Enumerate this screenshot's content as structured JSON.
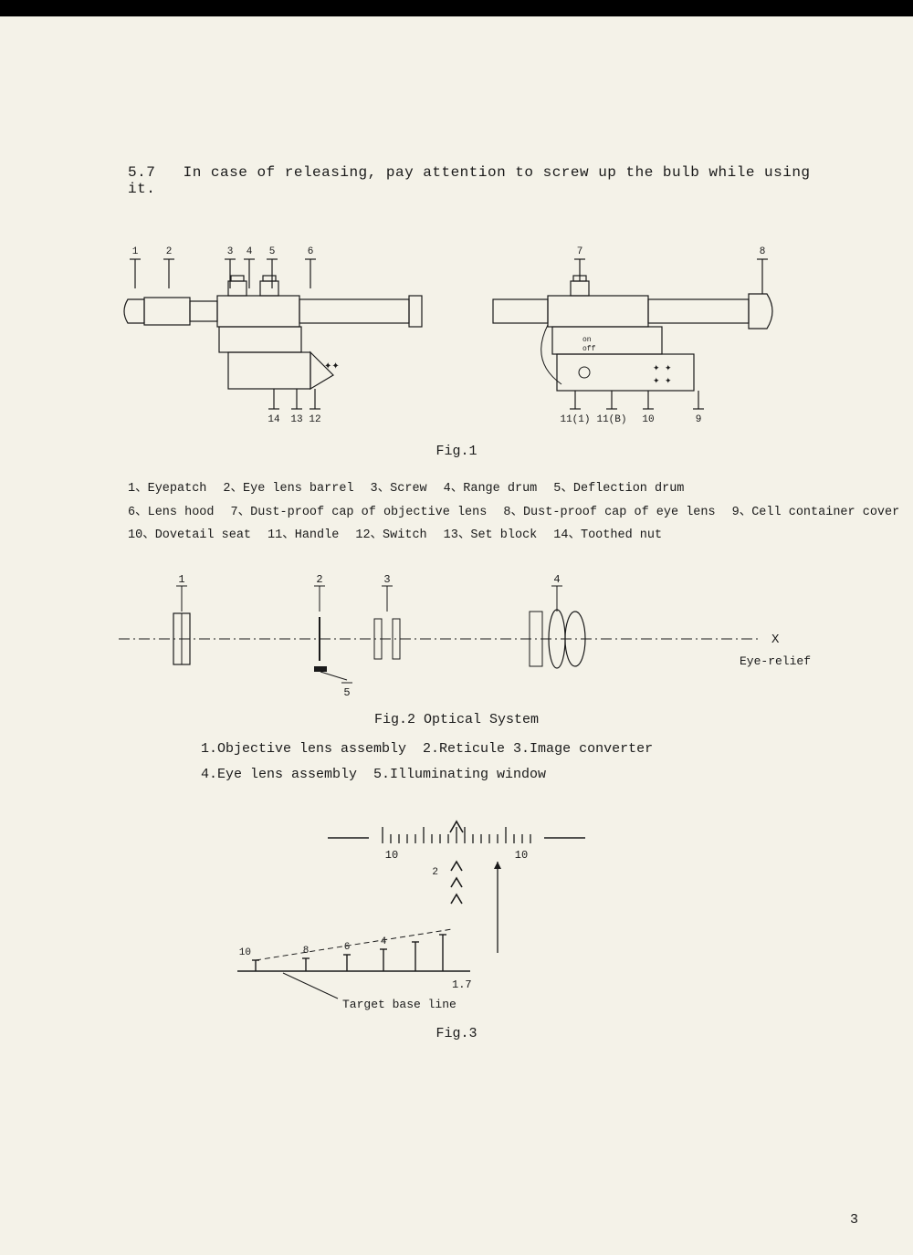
{
  "section": {
    "num": "5.7",
    "text": "In case of releasing, pay attention to screw up the bulb while using it."
  },
  "fig1": {
    "label": "Fig.1",
    "callouts_top": [
      "1",
      "2",
      "3",
      "4",
      "5",
      "6",
      "7",
      "8"
    ],
    "callouts_bottom_left": [
      "14",
      "13",
      "12"
    ],
    "callouts_bottom_right": [
      "11(1)",
      "11(B)",
      "10",
      "9"
    ],
    "parts": [
      {
        "n": "1",
        "t": "Eyepatch"
      },
      {
        "n": "2",
        "t": "Eye lens barrel"
      },
      {
        "n": "3",
        "t": "Screw"
      },
      {
        "n": "4",
        "t": "Range drum"
      },
      {
        "n": "5",
        "t": "Deflection drum"
      },
      {
        "n": "6",
        "t": "Lens hood"
      },
      {
        "n": "7",
        "t": "Dust-proof cap of objective lens"
      },
      {
        "n": "8",
        "t": "Dust-proof cap of eye lens"
      },
      {
        "n": "9",
        "t": "Cell container cover"
      },
      {
        "n": "10",
        "t": "Dovetail seat"
      },
      {
        "n": "11",
        "t": "Handle"
      },
      {
        "n": "12",
        "t": "Switch"
      },
      {
        "n": "13",
        "t": "Set block"
      },
      {
        "n": "14",
        "t": "Toothed nut"
      }
    ],
    "stroke": "#1a1a1a",
    "stroke_width": 1.2
  },
  "fig2": {
    "label": "Fig.2 Optical System",
    "callouts": [
      "1",
      "2",
      "3",
      "4",
      "5"
    ],
    "axis_label": "X",
    "relief_label": "Eye-relief",
    "parts": [
      {
        "n": "1",
        "t": "Objective lens assembly"
      },
      {
        "n": "2",
        "t": "Reticule"
      },
      {
        "n": "3",
        "t": "Image converter"
      },
      {
        "n": "4",
        "t": "Eye lens assembly"
      },
      {
        "n": "5",
        "t": "Illuminating window"
      }
    ],
    "stroke": "#1a1a1a"
  },
  "fig3": {
    "label": "Fig.3",
    "top_scale_left": "10",
    "top_scale_right": "10",
    "stadia_nums": [
      "10",
      "8",
      "6",
      "4",
      "2"
    ],
    "base_height": "1.7",
    "base_label": "Target base line",
    "stroke": "#1a1a1a"
  },
  "page_number": "3"
}
